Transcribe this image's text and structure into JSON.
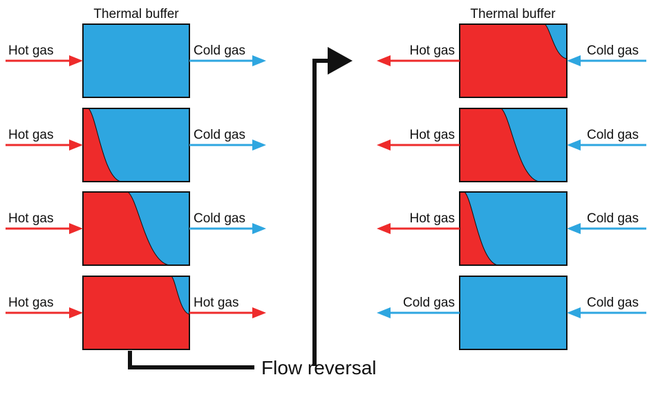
{
  "left_panel": {
    "title": "Thermal buffer",
    "rows": [
      {
        "left": "Hot gas",
        "right": "Cold gas"
      },
      {
        "left": "Hot gas",
        "right": "Cold gas"
      },
      {
        "left": "Hot gas",
        "right": "Cold gas"
      },
      {
        "left": "Hot gas",
        "right": "Hot gas"
      }
    ]
  },
  "right_panel": {
    "title": "Thermal buffer",
    "rows": [
      {
        "left": "Hot gas",
        "right": "Cold gas"
      },
      {
        "left": "Hot gas",
        "right": "Cold gas"
      },
      {
        "left": "Hot gas",
        "right": "Cold gas"
      },
      {
        "left": "Cold gas",
        "right": "Cold gas"
      }
    ]
  },
  "annotation": "Flow reversal"
}
